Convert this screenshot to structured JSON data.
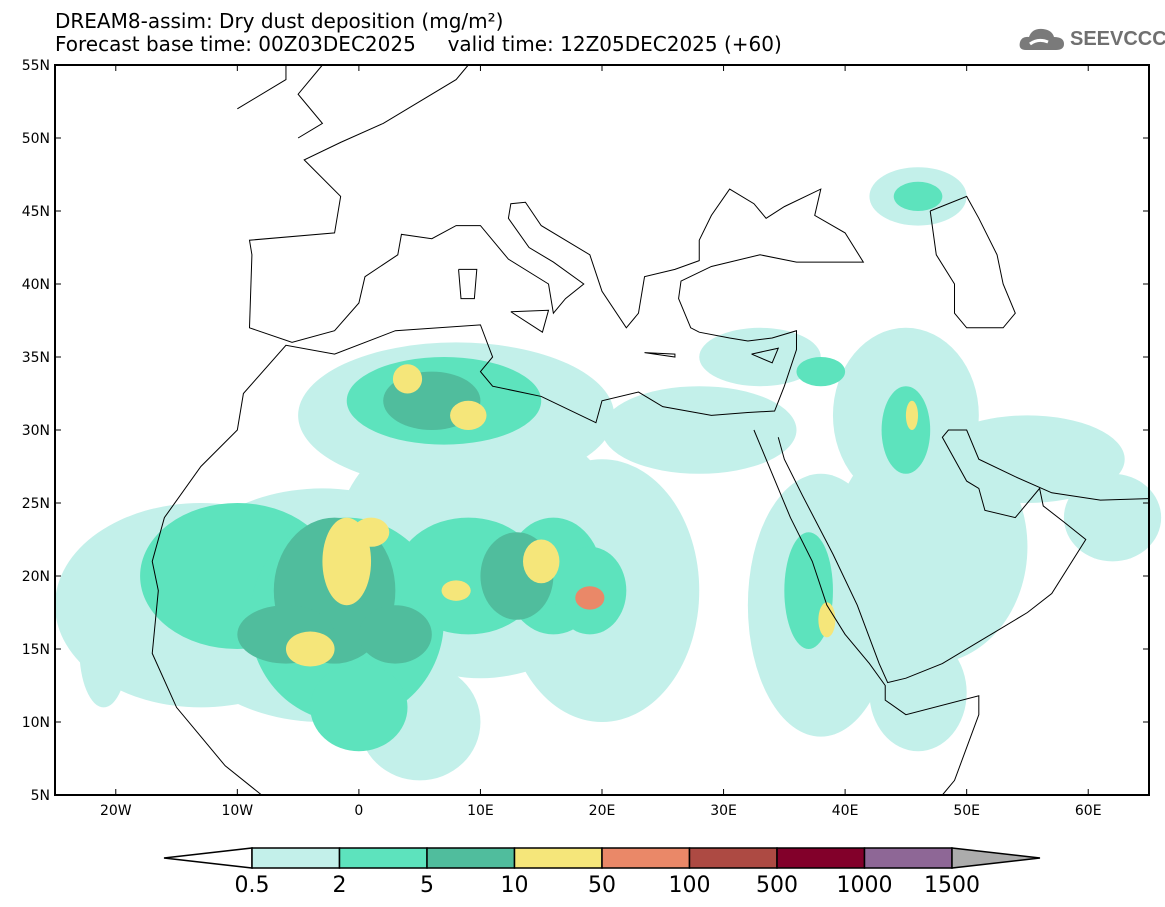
{
  "header": {
    "title": "DREAM8-assim: Dry dust deposition (mg/m²)",
    "subtitle": "Forecast base time: 00Z03DEC2025     valid time: 12Z05DEC2025 (+60)",
    "logo": "SEEVCCC"
  },
  "map": {
    "lon_range": [
      -25,
      65
    ],
    "lat_range": [
      5,
      55
    ],
    "lat_labels": [
      "55N",
      "50N",
      "45N",
      "40N",
      "35N",
      "30N",
      "25N",
      "20N",
      "15N",
      "10N",
      "5N"
    ],
    "lat_values": [
      55,
      50,
      45,
      40,
      35,
      30,
      25,
      20,
      15,
      10,
      5
    ],
    "lon_labels": [
      "20W",
      "10W",
      "0",
      "10E",
      "20E",
      "30E",
      "40E",
      "50E",
      "60E"
    ],
    "lon_values": [
      -20,
      -10,
      0,
      10,
      20,
      30,
      40,
      50,
      60
    ]
  },
  "colorbar": {
    "labels": [
      "0.5",
      "2",
      "5",
      "10",
      "50",
      "100",
      "500",
      "1000",
      "1500"
    ],
    "colors": [
      "#c3f0ea",
      "#5de3bd",
      "#50bd9d",
      "#f5e67a",
      "#ea8868",
      "#ad4a43",
      "#82002a",
      "#8e6796"
    ],
    "under_color": "#ffffff",
    "over_color": "#acacac"
  }
}
